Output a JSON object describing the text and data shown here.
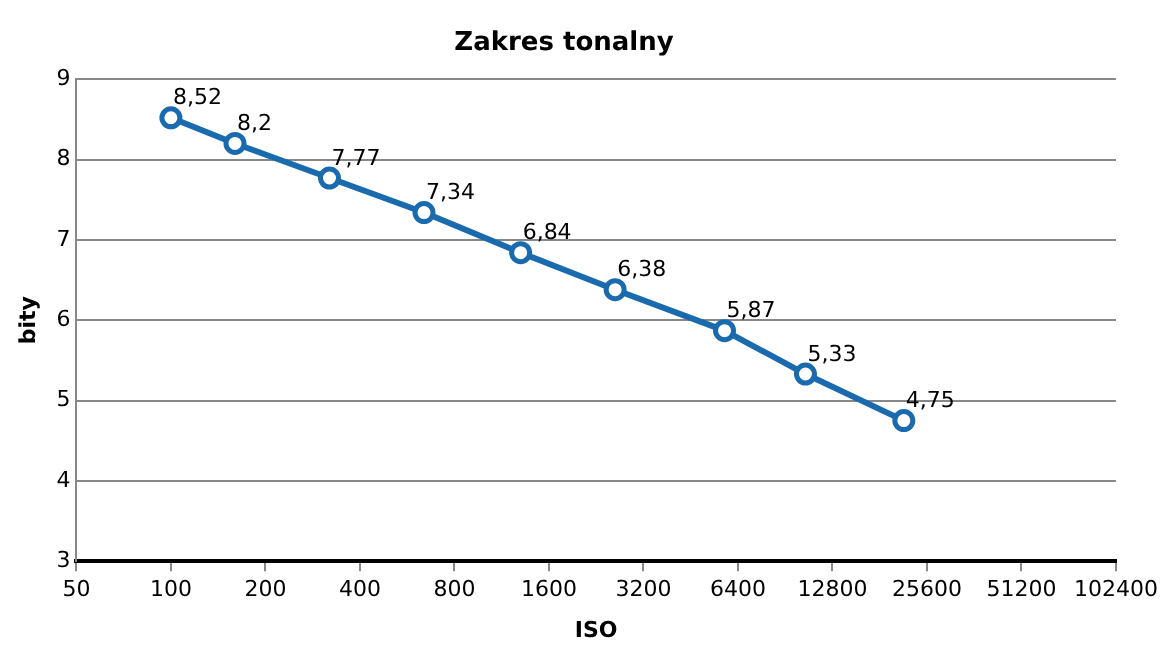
{
  "chart_data": {
    "type": "line",
    "title": "Zakres tonalny",
    "xlabel": "ISO",
    "ylabel": "bity",
    "x": [
      100,
      160,
      320,
      640,
      1300,
      2600,
      5800,
      10500,
      21600
    ],
    "series": [
      {
        "color": "#1a6aae",
        "values": [
          8.52,
          8.2,
          7.77,
          7.34,
          6.84,
          6.38,
          5.87,
          5.33,
          4.75
        ],
        "value_labels": [
          "8,52",
          "8,2",
          "7,77",
          "7,34",
          "6,84",
          "6,38",
          "5,87",
          "5,33",
          "4,75"
        ]
      }
    ],
    "log": "x",
    "xlim": [
      50,
      102400
    ],
    "xticks": [
      50,
      100,
      200,
      400,
      800,
      1600,
      3200,
      6400,
      12800,
      25600,
      51200,
      102400
    ],
    "ylim": [
      3,
      9
    ],
    "yticks": [
      3,
      4,
      5,
      6,
      7,
      8,
      9
    ],
    "grid": "y",
    "marker": "circle",
    "line_style": "solid",
    "legend": false
  }
}
